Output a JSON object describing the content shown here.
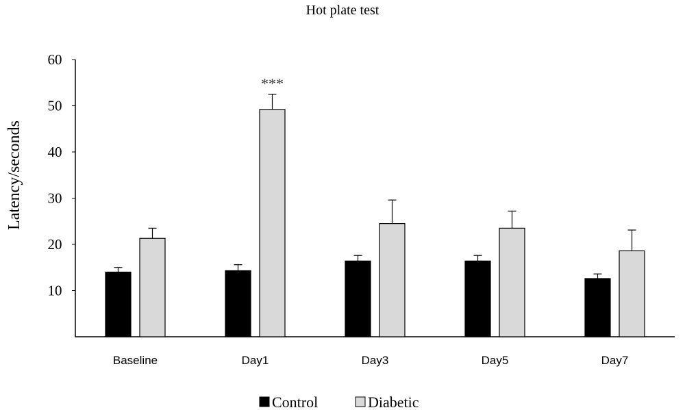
{
  "chart_data": {
    "type": "bar",
    "title": "Hot plate test",
    "xlabel": "",
    "ylabel": "Latency/seconds",
    "ylim": [
      0,
      60
    ],
    "yticks": [
      "10",
      "20",
      "30",
      "40",
      "50",
      "60"
    ],
    "categories": [
      "Baseline",
      "Day1",
      "Day3",
      "Day5",
      "Day7"
    ],
    "series": [
      {
        "name": "Control",
        "color": "#000000",
        "values": [
          14.0,
          14.3,
          16.4,
          16.4,
          12.6
        ],
        "errors": [
          1.0,
          1.3,
          1.2,
          1.2,
          1.0
        ]
      },
      {
        "name": "Diabetic",
        "color": "#d9d9d9",
        "values": [
          21.3,
          49.2,
          24.5,
          23.5,
          18.6
        ],
        "errors": [
          2.2,
          3.3,
          5.1,
          3.7,
          4.5
        ]
      }
    ],
    "annotations": [
      {
        "text": "***",
        "category": "Day1",
        "series": "Diabetic"
      }
    ],
    "grid": false,
    "legend": "bottom"
  }
}
